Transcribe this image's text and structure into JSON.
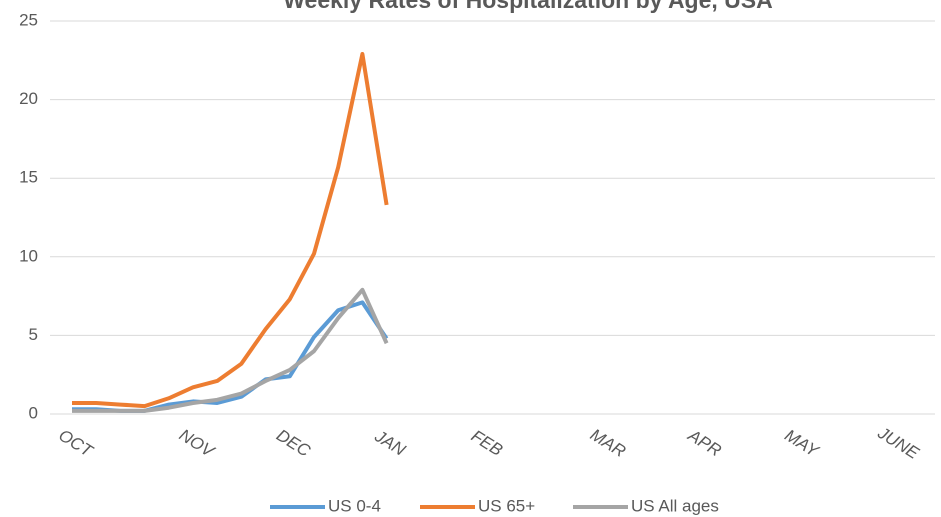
{
  "chart_data": {
    "type": "line",
    "title": "Weekly Rates of Hospitalization by Age, USA",
    "categories": [
      "OCT",
      null,
      null,
      null,
      null,
      "NOV",
      null,
      null,
      null,
      "DEC",
      null,
      null,
      null,
      "JAN",
      null,
      null,
      null,
      "FEB",
      null,
      null,
      null,
      null,
      "MAR",
      null,
      null,
      null,
      "APR",
      null,
      null,
      null,
      "MAY",
      null,
      null,
      null,
      "JUNE",
      null
    ],
    "series": [
      {
        "name": "US 0-4",
        "color": "#5b9bd5",
        "values": [
          0.3,
          0.3,
          0.2,
          0.2,
          0.6,
          0.8,
          0.7,
          1.1,
          2.2,
          2.4,
          4.9,
          6.6,
          7.1,
          4.8,
          null,
          null,
          null,
          null,
          null,
          null,
          null,
          null,
          null,
          null,
          null,
          null,
          null,
          null,
          null,
          null,
          null,
          null,
          null,
          null,
          null,
          null
        ]
      },
      {
        "name": "US 65+",
        "color": "#ed7d31",
        "values": [
          0.7,
          0.7,
          0.6,
          0.5,
          1.0,
          1.7,
          2.1,
          3.2,
          5.4,
          7.3,
          10.2,
          15.7,
          22.9,
          13.3,
          null,
          null,
          null,
          null,
          null,
          null,
          null,
          null,
          null,
          null,
          null,
          null,
          null,
          null,
          null,
          null,
          null,
          null,
          null,
          null,
          null,
          null
        ]
      },
      {
        "name": "US All ages",
        "color": "#a5a5a5",
        "values": [
          0.2,
          0.2,
          0.2,
          0.2,
          0.4,
          0.7,
          0.9,
          1.3,
          2.1,
          2.8,
          4.0,
          6.1,
          7.9,
          4.5,
          null,
          null,
          null,
          null,
          null,
          null,
          null,
          null,
          null,
          null,
          null,
          null,
          null,
          null,
          null,
          null,
          null,
          null,
          null,
          null,
          null,
          null
        ]
      }
    ],
    "ylim": [
      0,
      25
    ],
    "yticks": [
      0,
      5,
      10,
      15,
      20,
      25
    ],
    "grid": true,
    "legend": "bottom"
  }
}
